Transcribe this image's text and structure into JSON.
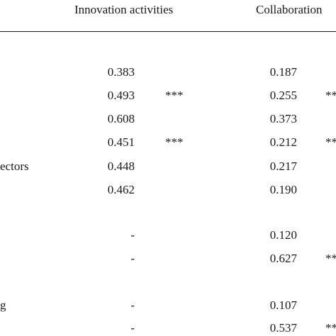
{
  "header": {
    "col_innovation": "Innovation activities",
    "col_collaboration": "Collaboration"
  },
  "rows": [
    {
      "label": "",
      "innovation": "0.383",
      "innovation_sig": "",
      "collaboration": "0.187",
      "collaboration_sig": ""
    },
    {
      "label": "",
      "innovation": "0.493",
      "innovation_sig": "***",
      "collaboration": "0.255",
      "collaboration_sig": "**"
    },
    {
      "label": "",
      "innovation": "0.608",
      "innovation_sig": "",
      "collaboration": "0.373",
      "collaboration_sig": ""
    },
    {
      "label": "",
      "innovation": "0.451",
      "innovation_sig": "***",
      "collaboration": "0.212",
      "collaboration_sig": "**"
    },
    {
      "label": "ectors",
      "innovation": "0.448",
      "innovation_sig": "",
      "collaboration": "0.217",
      "collaboration_sig": ""
    },
    {
      "label": "",
      "innovation": "0.462",
      "innovation_sig": "",
      "collaboration": "0.190",
      "collaboration_sig": ""
    },
    {
      "label": "",
      "innovation": "-",
      "innovation_sig": "",
      "collaboration": "0.120",
      "collaboration_sig": ""
    },
    {
      "label": "",
      "innovation": "-",
      "innovation_sig": "",
      "collaboration": "0.627",
      "collaboration_sig": "**"
    },
    {
      "label": "g",
      "innovation": "-",
      "innovation_sig": "",
      "collaboration": "0.107",
      "collaboration_sig": ""
    },
    {
      "label": "",
      "innovation": "-",
      "innovation_sig": "",
      "collaboration": "0.537",
      "collaboration_sig": "**"
    }
  ]
}
